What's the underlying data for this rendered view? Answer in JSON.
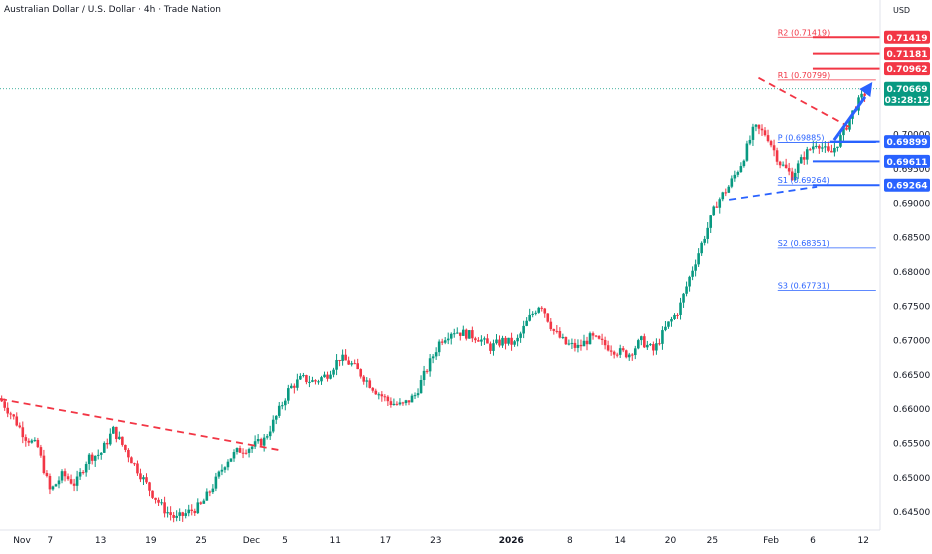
{
  "chart_data": {
    "type": "candlestick",
    "title": "Australian Dollar / U.S. Dollar · 4h · Trade Nation",
    "currency": "USD",
    "y_ticks": [
      "0.70000",
      "0.69500",
      "0.69000",
      "0.68500",
      "0.68000",
      "0.67500",
      "0.67000",
      "0.66500",
      "0.66000",
      "0.65500",
      "0.65000",
      "0.64500"
    ],
    "x_ticks": [
      {
        "label": "Nov",
        "x": 0.0,
        "bold": false
      },
      {
        "label": "7",
        "x": 6,
        "bold": false
      },
      {
        "label": "13",
        "x": 12,
        "bold": false
      },
      {
        "label": "19",
        "x": 18,
        "bold": false
      },
      {
        "label": "25",
        "x": 24,
        "bold": false
      },
      {
        "label": "Dec",
        "x": 30,
        "bold": false
      },
      {
        "label": "5",
        "x": 34,
        "bold": false
      },
      {
        "label": "11",
        "x": 40,
        "bold": false
      },
      {
        "label": "17",
        "x": 46,
        "bold": false
      },
      {
        "label": "23",
        "x": 52,
        "bold": false
      },
      {
        "label": "2026",
        "x": 61,
        "bold": true
      },
      {
        "label": "8",
        "x": 68,
        "bold": false
      },
      {
        "label": "14",
        "x": 74,
        "bold": false
      },
      {
        "label": "20",
        "x": 80,
        "bold": false
      },
      {
        "label": "25",
        "x": 85,
        "bold": false
      },
      {
        "label": "Feb",
        "x": 92,
        "bold": false
      },
      {
        "label": "6",
        "x": 97,
        "bold": false
      },
      {
        "label": "12",
        "x": 103,
        "bold": false
      }
    ],
    "close_path": [
      [
        0,
        0.6615
      ],
      [
        1.5,
        0.659
      ],
      [
        3,
        0.656
      ],
      [
        4.5,
        0.6545
      ],
      [
        6,
        0.648
      ],
      [
        7.5,
        0.6505
      ],
      [
        9,
        0.649
      ],
      [
        10.5,
        0.653
      ],
      [
        12,
        0.6535
      ],
      [
        13.5,
        0.657
      ],
      [
        15,
        0.654
      ],
      [
        16.5,
        0.651
      ],
      [
        18,
        0.648
      ],
      [
        19.5,
        0.6455
      ],
      [
        21,
        0.644
      ],
      [
        22.5,
        0.645
      ],
      [
        24,
        0.646
      ],
      [
        25.5,
        0.649
      ],
      [
        27,
        0.6525
      ],
      [
        28.5,
        0.654
      ],
      [
        30,
        0.6545
      ],
      [
        31.5,
        0.6555
      ],
      [
        33,
        0.659
      ],
      [
        34.5,
        0.663
      ],
      [
        36,
        0.6645
      ],
      [
        37.5,
        0.664
      ],
      [
        39,
        0.665
      ],
      [
        40.5,
        0.6675
      ],
      [
        42,
        0.6665
      ],
      [
        43.5,
        0.6645
      ],
      [
        45,
        0.6625
      ],
      [
        46.5,
        0.661
      ],
      [
        48,
        0.6605
      ],
      [
        49.5,
        0.662
      ],
      [
        51,
        0.666
      ],
      [
        52.5,
        0.67
      ],
      [
        54,
        0.6715
      ],
      [
        55.5,
        0.671
      ],
      [
        57,
        0.6705
      ],
      [
        58.5,
        0.669
      ],
      [
        60,
        0.67
      ],
      [
        61.5,
        0.6695
      ],
      [
        63,
        0.673
      ],
      [
        64.5,
        0.6755
      ],
      [
        66,
        0.6715
      ],
      [
        67.5,
        0.6695
      ],
      [
        69,
        0.669
      ],
      [
        70.5,
        0.6705
      ],
      [
        72,
        0.6695
      ],
      [
        73.5,
        0.6685
      ],
      [
        75,
        0.668
      ],
      [
        76.5,
        0.67
      ],
      [
        78,
        0.6685
      ],
      [
        79.5,
        0.672
      ],
      [
        81,
        0.6745
      ],
      [
        82.5,
        0.68
      ],
      [
        84,
        0.685
      ],
      [
        85.5,
        0.69
      ],
      [
        87,
        0.6925
      ],
      [
        88.5,
        0.696
      ],
      [
        90,
        0.701
      ],
      [
        91.5,
        0.7
      ],
      [
        93,
        0.696
      ],
      [
        94.5,
        0.694
      ],
      [
        96,
        0.697
      ],
      [
        97.5,
        0.699
      ],
      [
        99,
        0.697
      ],
      [
        100.5,
        0.7
      ],
      [
        102,
        0.704
      ],
      [
        103.5,
        0.7066
      ]
    ],
    "levels": [
      {
        "name": "R2",
        "label": "R2 (0.71419)",
        "value": 0.71419,
        "color": "#f23645"
      },
      {
        "name": "R1",
        "label": "R1 (0.70799)",
        "value": 0.70799,
        "color": "#f23645"
      },
      {
        "name": "P",
        "label": "P (0.69885)",
        "value": 0.69885,
        "color": "#2962ff"
      },
      {
        "name": "S1",
        "label": "S1 (0.69264)",
        "value": 0.69264,
        "color": "#2962ff"
      },
      {
        "name": "S2",
        "label": "S2 (0.68351)",
        "value": 0.68351,
        "color": "#2962ff"
      },
      {
        "name": "S3",
        "label": "S3 (0.67731)",
        "value": 0.67731,
        "color": "#2962ff"
      }
    ],
    "price_tags": [
      {
        "text": "0.71419",
        "value": 0.71419,
        "color": "#f23645"
      },
      {
        "text": "0.71181",
        "value": 0.71181,
        "color": "#f23645"
      },
      {
        "text": "0.70962",
        "value": 0.70962,
        "color": "#f23645"
      },
      {
        "text": "0.70669",
        "value": 0.70669,
        "color": "#089981",
        "countdown": "03:28:12"
      },
      {
        "text": "0.69899",
        "value": 0.69899,
        "color": "#2962ff"
      },
      {
        "text": "0.69611",
        "value": 0.69611,
        "color": "#2962ff"
      },
      {
        "text": "0.69264",
        "value": 0.69264,
        "color": "#2962ff"
      }
    ],
    "y_range": [
      0.6424,
      0.717
    ],
    "x_range": [
      0,
      105
    ],
    "up_color": "#089981",
    "down_color": "#f23645"
  }
}
